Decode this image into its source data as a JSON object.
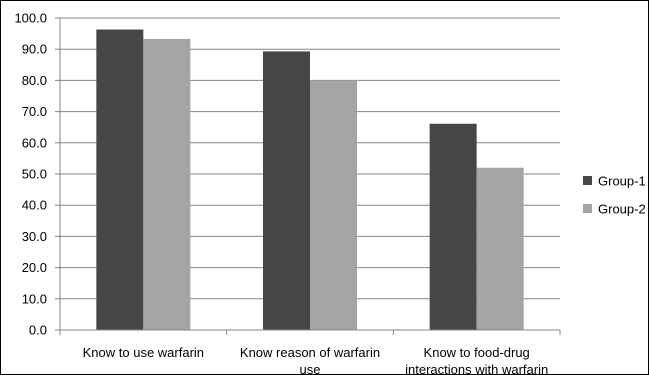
{
  "chart_data": {
    "type": "bar",
    "categories": [
      [
        "Know to use warfarin"
      ],
      [
        "Know reason of warfarin",
        "use"
      ],
      [
        "Know to food-drug",
        "interactions with warfarin"
      ]
    ],
    "series": [
      {
        "name": "Group-1",
        "values": [
          96.3,
          89.3,
          66.1
        ],
        "color": "#464646"
      },
      {
        "name": "Group-2",
        "values": [
          93.3,
          80.0,
          52.0
        ],
        "color": "#a5a5a5"
      }
    ],
    "ylim": [
      0,
      100
    ],
    "yticks": [
      "0.0",
      "10.0",
      "20.0",
      "30.0",
      "40.0",
      "50.0",
      "60.0",
      "70.0",
      "80.0",
      "90.0",
      "100.0"
    ],
    "grid": true,
    "legend": "right"
  }
}
